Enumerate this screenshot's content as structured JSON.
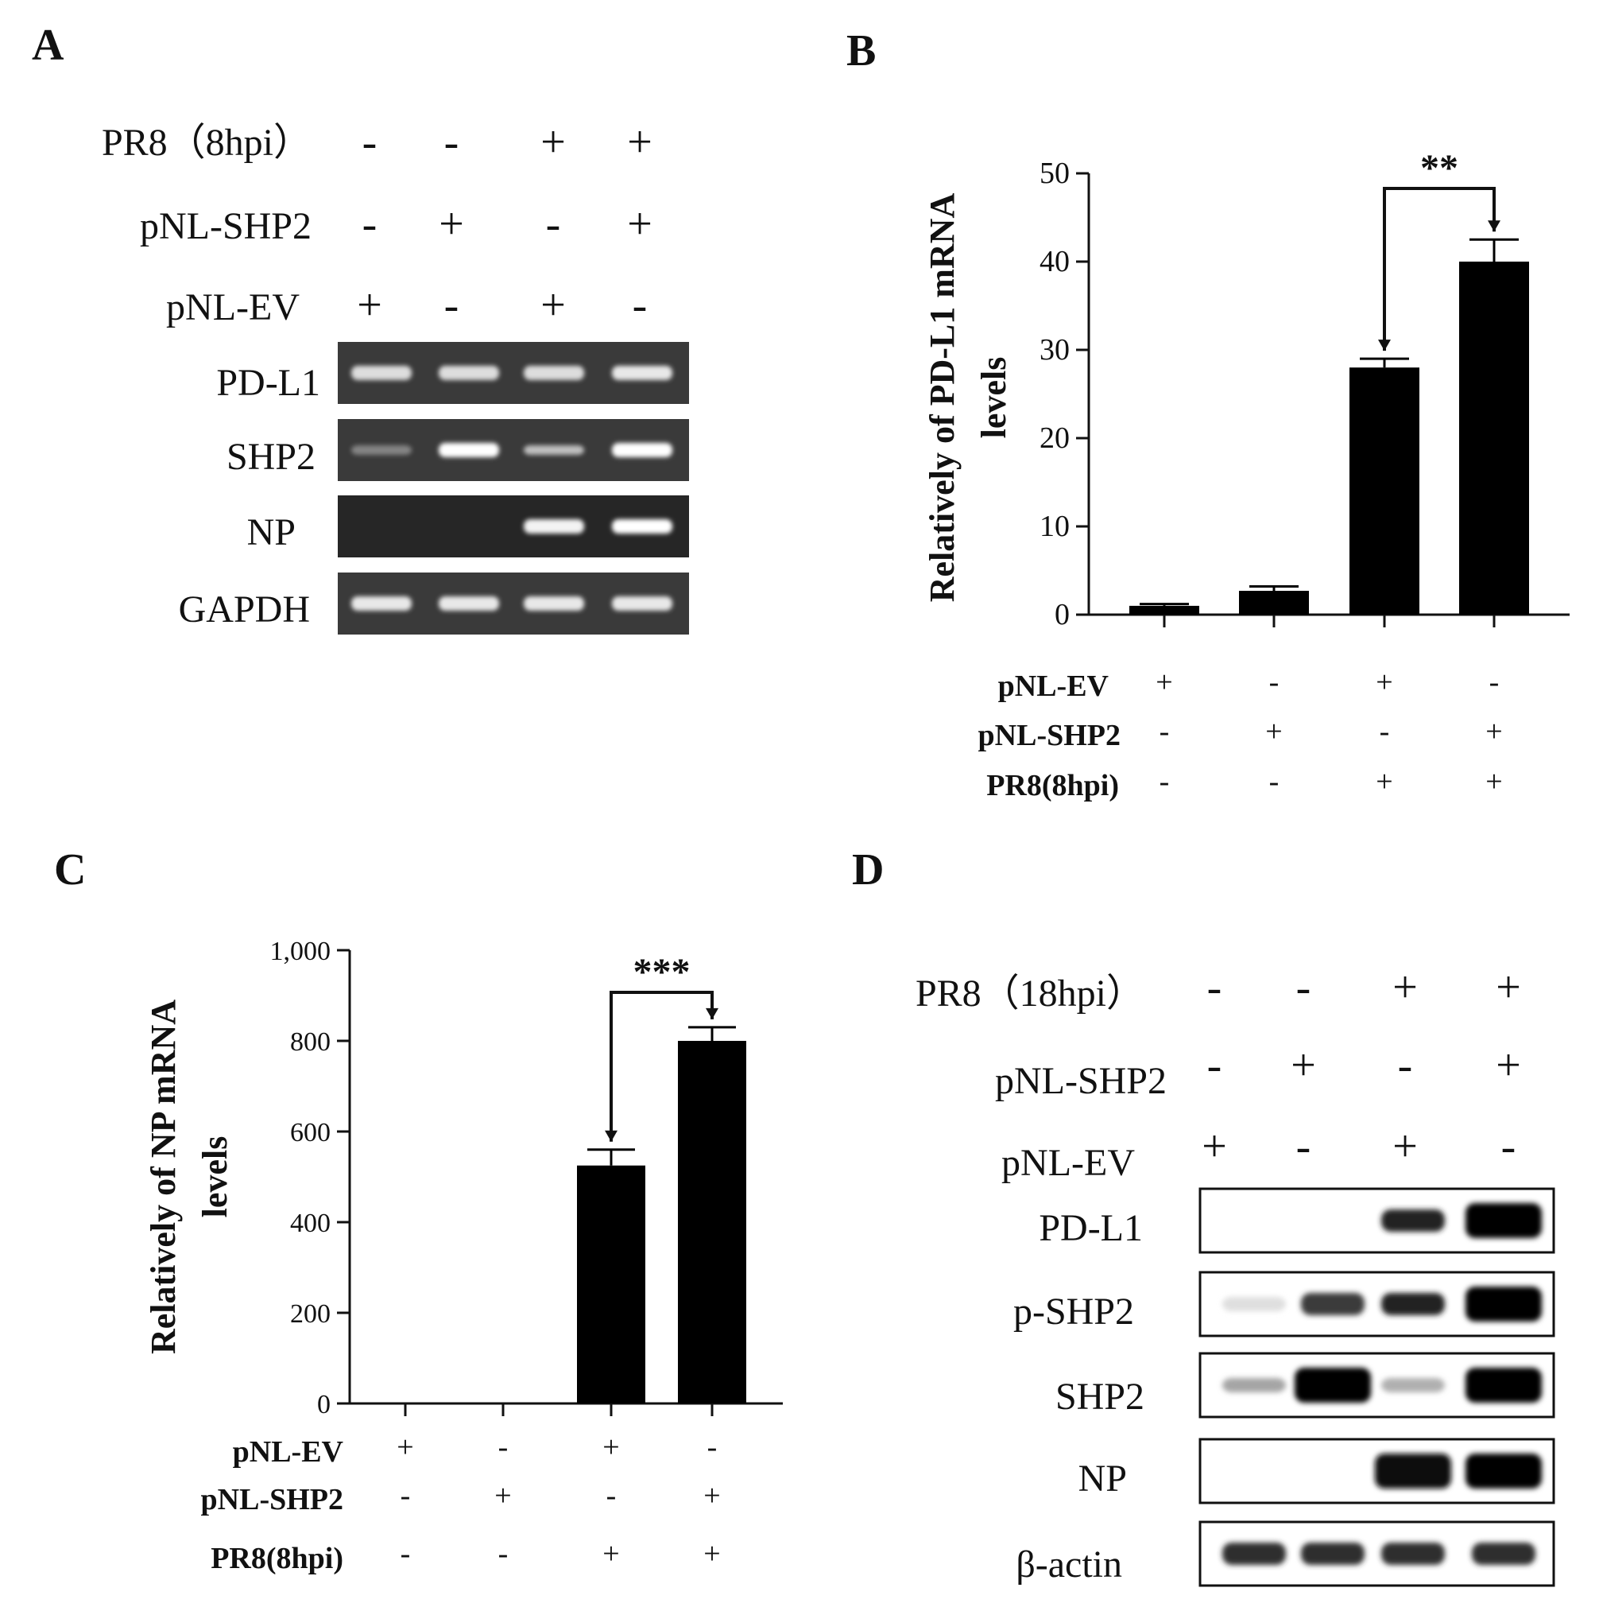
{
  "panels": {
    "A": {
      "letter": "A",
      "conditions": [
        {
          "label": "PR8（8hpi）",
          "marks": [
            "-",
            "-",
            "+",
            "+"
          ]
        },
        {
          "label": "pNL-SHP2",
          "marks": [
            "-",
            "+",
            "-",
            "+"
          ]
        },
        {
          "label": "pNL-EV",
          "marks": [
            "+",
            "-",
            "+",
            "-"
          ]
        }
      ],
      "gel_rows": [
        {
          "label": "PD-L1",
          "bands": [
            0.85,
            0.85,
            0.85,
            0.9
          ]
        },
        {
          "label": "SHP2",
          "bands": [
            0.35,
            1.0,
            0.7,
            1.0
          ]
        },
        {
          "label": "NP",
          "bands": [
            0,
            0,
            0.95,
            1.0
          ]
        },
        {
          "label": "GAPDH",
          "bands": [
            0.9,
            0.9,
            0.9,
            0.9
          ]
        }
      ]
    },
    "D": {
      "letter": "D",
      "conditions": [
        {
          "label": "PR8（18hpi）",
          "marks": [
            "-",
            "-",
            "+",
            "+"
          ]
        },
        {
          "label": "pNL-SHP2",
          "marks": [
            "-",
            "+",
            "-",
            "+"
          ]
        },
        {
          "label": "pNL-EV",
          "marks": [
            "+",
            "-",
            "+",
            "-"
          ]
        }
      ],
      "blot_rows": [
        {
          "label": "PD-L1",
          "bands": [
            0,
            0,
            0.85,
            1.0
          ]
        },
        {
          "label": "p-SHP2",
          "bands": [
            0.05,
            0.75,
            0.85,
            1.0
          ]
        },
        {
          "label": "SHP2",
          "bands": [
            0.3,
            1.0,
            0.25,
            1.0
          ]
        },
        {
          "label": "NP",
          "bands": [
            0,
            0,
            0.95,
            1.0
          ]
        },
        {
          "label": "β-actin",
          "bands": [
            0.8,
            0.8,
            0.8,
            0.8
          ]
        }
      ]
    }
  },
  "chart_data": [
    {
      "panel": "B",
      "letter": "B",
      "type": "bar",
      "ylabel": [
        "Relatively of PD-L1 mRNA",
        "levels"
      ],
      "ylim": [
        0,
        50
      ],
      "yticks": [
        0,
        10,
        20,
        30,
        40,
        50
      ],
      "ytick_labels": [
        "0",
        "10",
        "20",
        "30",
        "40",
        "50"
      ],
      "values": [
        1.0,
        2.7,
        28.0,
        40.0
      ],
      "errors": [
        0.2,
        0.5,
        1.0,
        2.5
      ],
      "significance": {
        "between": [
          2,
          3
        ],
        "label": "**"
      },
      "conditions": [
        {
          "label": "pNL-EV",
          "marks": [
            "+",
            "-",
            "+",
            "-"
          ]
        },
        {
          "label": "pNL-SHP2",
          "marks": [
            "-",
            "+",
            "-",
            "+"
          ]
        },
        {
          "label": "PR8(8hpi)",
          "marks": [
            "-",
            "-",
            "+",
            "+"
          ]
        }
      ]
    },
    {
      "panel": "C",
      "letter": "C",
      "type": "bar",
      "ylabel": [
        "Relatively of NP mRNA",
        "levels"
      ],
      "ylim": [
        0,
        1000
      ],
      "yticks": [
        0,
        200,
        400,
        600,
        800,
        1000
      ],
      "ytick_labels": [
        "0",
        "200",
        "400",
        "600",
        "800",
        "1,000"
      ],
      "values": [
        0,
        0,
        525,
        800
      ],
      "errors": [
        0,
        0,
        35,
        30
      ],
      "significance": {
        "between": [
          2,
          3
        ],
        "label": "***"
      },
      "conditions": [
        {
          "label": "pNL-EV",
          "marks": [
            "+",
            "-",
            "+",
            "-"
          ]
        },
        {
          "label": "pNL-SHP2",
          "marks": [
            "-",
            "+",
            "-",
            "+"
          ]
        },
        {
          "label": "PR8(8hpi)",
          "marks": [
            "-",
            "-",
            "+",
            "+"
          ]
        }
      ]
    }
  ]
}
